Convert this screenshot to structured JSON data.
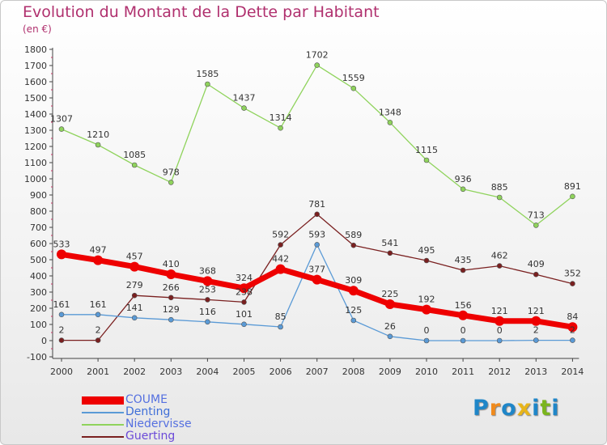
{
  "header": {
    "title": "Evolution du Montant de la Dette par Habitant",
    "subtitle": "(en €)"
  },
  "logo": {
    "letters": [
      {
        "ch": "P",
        "color": "#1f86c8"
      },
      {
        "ch": "r",
        "color": "#f08a1c"
      },
      {
        "ch": "o",
        "color": "#1f86c8"
      },
      {
        "ch": "x",
        "color": "#e8b51a"
      },
      {
        "ch": "i",
        "color": "#1f86c8"
      },
      {
        "ch": "t",
        "color": "#7ab51d"
      },
      {
        "ch": "i",
        "color": "#1f86c8"
      }
    ]
  },
  "chart_data": {
    "type": "line",
    "x": [
      "2000",
      "2001",
      "2002",
      "2003",
      "2004",
      "2005",
      "2006",
      "2007",
      "2008",
      "2009",
      "2010",
      "2011",
      "2012",
      "2013",
      "2014"
    ],
    "ylim": [
      -100,
      1800
    ],
    "yticks": [
      -100,
      0,
      100,
      200,
      300,
      400,
      500,
      600,
      700,
      800,
      900,
      1000,
      1100,
      1200,
      1300,
      1400,
      1500,
      1600,
      1700,
      1800
    ],
    "grid": false,
    "legend_position": "bottom-left",
    "series": [
      {
        "name": "COUME",
        "color": "#ee0000",
        "values": [
          533,
          497,
          457,
          410,
          368,
          324,
          442,
          377,
          309,
          225,
          192,
          156,
          121,
          121,
          84
        ]
      },
      {
        "name": "Denting",
        "color": "#5a9ad6",
        "values": [
          161,
          161,
          141,
          129,
          116,
          101,
          85,
          593,
          125,
          26,
          0,
          0,
          0,
          2,
          2
        ]
      },
      {
        "name": "Niedervisse",
        "color": "#8fd35c",
        "values": [
          1307,
          1210,
          1085,
          978,
          1585,
          1437,
          1314,
          1702,
          1559,
          1348,
          1115,
          936,
          885,
          713,
          891
        ]
      },
      {
        "name": "Guerting",
        "color": "#7a2020",
        "values": [
          2,
          2,
          279,
          266,
          253,
          238,
          592,
          781,
          589,
          541,
          495,
          435,
          462,
          409,
          352
        ]
      }
    ]
  },
  "colors": {
    "title": "#b0306e",
    "axis": "#444444",
    "tick_minor": "#cc3366",
    "label_text": "#333333"
  }
}
